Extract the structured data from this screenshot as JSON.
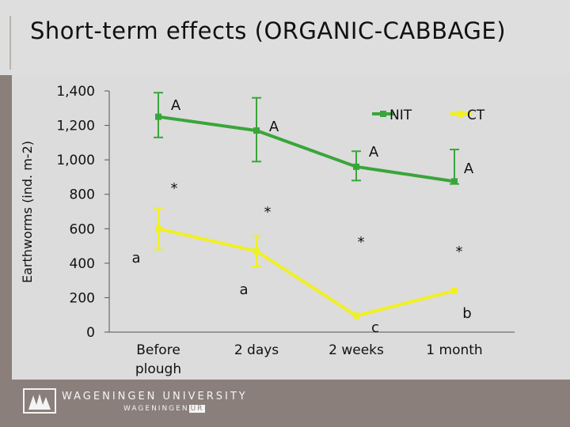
{
  "title": "Short-term effects (ORGANIC-CABBAGE)",
  "footer": {
    "logo_line1": "WAGENINGEN UNIVERSITY",
    "logo_line2_a": "WAGENINGEN",
    "logo_line2_b": "UR"
  },
  "chart_data": {
    "type": "line",
    "ylabel": "Earthworms (ind. m-2)",
    "ylim": [
      0,
      1400
    ],
    "yticks": [
      0,
      200,
      400,
      600,
      800,
      1000,
      1200,
      1400
    ],
    "ytick_labels": [
      "0",
      "200",
      "400",
      "600",
      "800",
      "1,000",
      "1,200",
      "1,400"
    ],
    "categories": [
      "Before plough",
      "2 days",
      "2 weeks",
      "1 month"
    ],
    "category_lines": [
      [
        "Before",
        "plough"
      ],
      [
        "2 days"
      ],
      [
        "2 weeks"
      ],
      [
        "1 month"
      ]
    ],
    "series": [
      {
        "name": "NIT",
        "color": "#3aa53a",
        "values": [
          1250,
          1170,
          960,
          875
        ],
        "err_low": [
          1130,
          990,
          880,
          860
        ],
        "err_high": [
          1390,
          1360,
          1050,
          1060
        ],
        "letters": [
          "A",
          "A",
          "A",
          "A"
        ]
      },
      {
        "name": "CT",
        "color": "#f0f023",
        "values": [
          600,
          470,
          95,
          240
        ],
        "err_low": [
          480,
          380,
          95,
          240
        ],
        "err_high": [
          720,
          560,
          95,
          240
        ],
        "letters": [
          "a",
          "a",
          "c",
          "b"
        ]
      }
    ],
    "significance": [
      "*",
      "*",
      "*",
      "*"
    ],
    "legend_position": "top-right"
  }
}
